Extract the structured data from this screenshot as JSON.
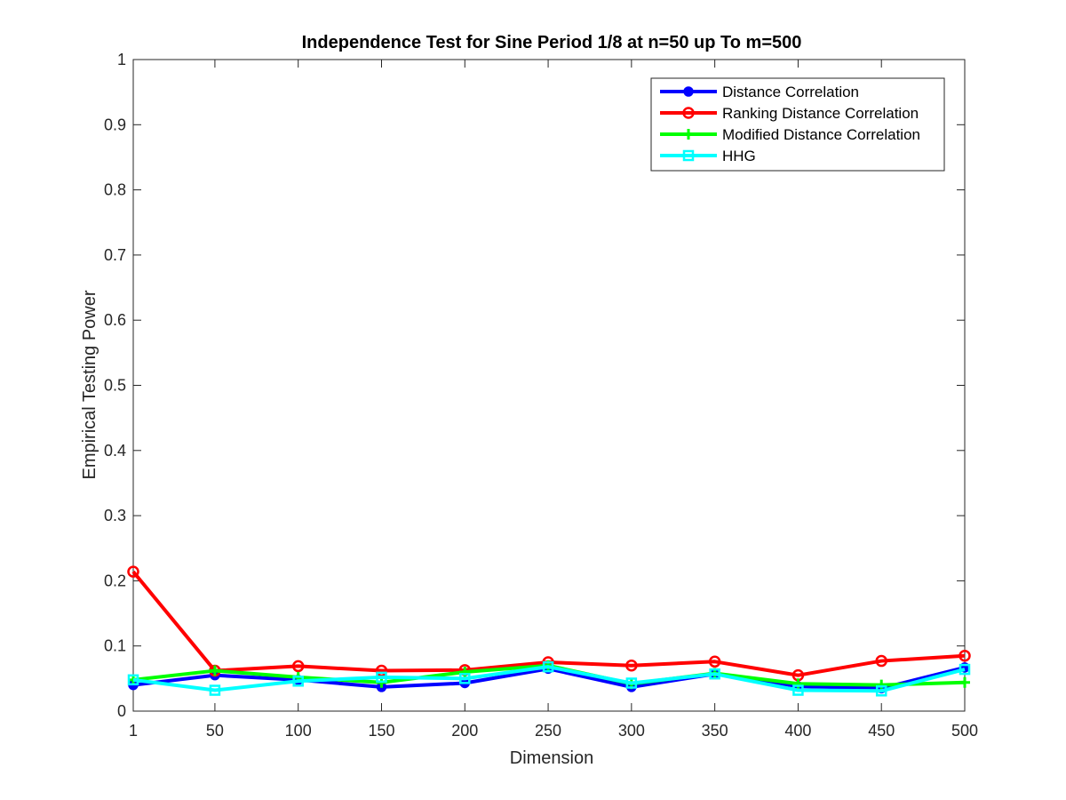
{
  "chart_data": {
    "type": "line",
    "title": "Independence Test for Sine Period 1/8 at n=50 up To m=500",
    "xlabel": "Dimension",
    "ylabel": "Empirical Testing Power",
    "x": [
      1,
      50,
      100,
      150,
      200,
      250,
      300,
      350,
      400,
      450,
      500
    ],
    "x_tick_labels": [
      "1",
      "50",
      "100",
      "150",
      "200",
      "250",
      "300",
      "350",
      "400",
      "450",
      "500"
    ],
    "xlim": [
      1,
      500
    ],
    "ylim": [
      0,
      1
    ],
    "y_ticks": [
      0,
      0.1,
      0.2,
      0.3,
      0.4,
      0.5,
      0.6,
      0.7,
      0.8,
      0.9,
      1
    ],
    "y_tick_labels": [
      "0",
      "0.1",
      "0.2",
      "0.3",
      "0.4",
      "0.5",
      "0.6",
      "0.7",
      "0.8",
      "0.9",
      "1"
    ],
    "grid": false,
    "legend_position": "top-right",
    "series": [
      {
        "name": "Distance Correlation",
        "color": "#0000ff",
        "marker": "filled-circle",
        "values": [
          0.04,
          0.055,
          0.048,
          0.037,
          0.043,
          0.065,
          0.037,
          0.057,
          0.038,
          0.035,
          0.067
        ]
      },
      {
        "name": "Ranking Distance Correlation",
        "color": "#ff0000",
        "marker": "open-circle",
        "values": [
          0.214,
          0.062,
          0.069,
          0.062,
          0.063,
          0.075,
          0.07,
          0.076,
          0.055,
          0.077,
          0.085
        ]
      },
      {
        "name": "Modified Distance Correlation",
        "color": "#00ff00",
        "marker": "plus",
        "values": [
          0.048,
          0.062,
          0.052,
          0.044,
          0.06,
          0.07,
          0.042,
          0.058,
          0.042,
          0.04,
          0.044
        ]
      },
      {
        "name": "HHG",
        "color": "#00ffff",
        "marker": "open-square",
        "values": [
          0.048,
          0.032,
          0.046,
          0.052,
          0.05,
          0.068,
          0.043,
          0.057,
          0.032,
          0.031,
          0.064
        ]
      }
    ]
  }
}
